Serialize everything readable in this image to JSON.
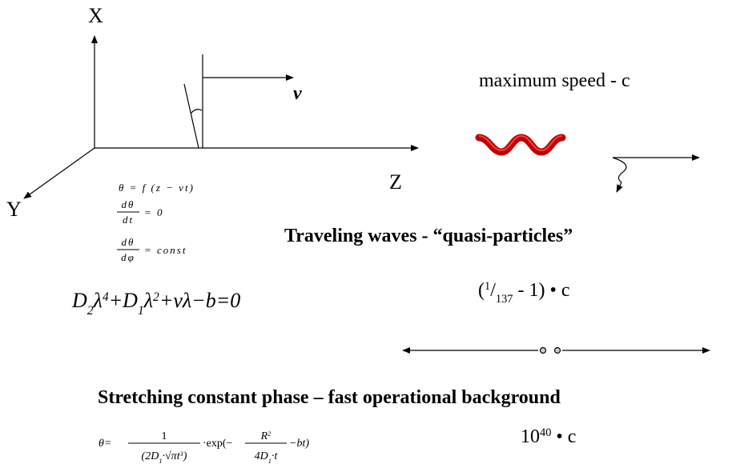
{
  "axes": {
    "x": "X",
    "y": "Y",
    "z": "Z",
    "velocity": "v"
  },
  "equations": {
    "phase": "θ = f (z − vt)",
    "rate": {
      "numerator": "dθ",
      "denominator": "dt",
      "rhs": "= 0"
    },
    "slope": {
      "numerator": "dθ",
      "denominator": "dφ",
      "rhs": "= const"
    },
    "polynomial": [
      {
        "t": "D"
      },
      {
        "sub": "2"
      },
      {
        "t": "λ"
      },
      {
        "sup": "4"
      },
      {
        "t": "+D"
      },
      {
        "sub": "1"
      },
      {
        "t": "λ"
      },
      {
        "sup": "2"
      },
      {
        "t": "+vλ−b=0"
      }
    ],
    "solution": {
      "lhs": "θ=",
      "frac": {
        "numerator": [
          {
            "t": "1"
          }
        ],
        "denominator": [
          {
            "t": "(2D"
          },
          {
            "sub": "1"
          },
          {
            "t": "·√πt"
          },
          {
            "sup": "3"
          },
          {
            "t": ")"
          }
        ]
      },
      "middle": "·exp(−",
      "frac2": {
        "numerator": [
          {
            "t": "R"
          },
          {
            "sup": "2"
          }
        ],
        "denominator": [
          {
            "t": "4D"
          },
          {
            "sub": "1"
          },
          {
            "t": "·t"
          }
        ]
      },
      "tail": "−bt)"
    }
  },
  "labels": {
    "max_speed": "maximum speed - c",
    "traveling": "Traveling waves  - “quasi-particles”",
    "traveling_speed": [
      {
        "t": "("
      },
      {
        "sup": "1"
      },
      {
        "t": "/"
      },
      {
        "sub": "137"
      },
      {
        "t": "  -  1) •  c"
      }
    ],
    "stretching": "Stretching constant phase – fast operational background",
    "stretching_speed": [
      {
        "t": "10"
      },
      {
        "sup": "40"
      },
      {
        "t": " • c"
      }
    ]
  }
}
